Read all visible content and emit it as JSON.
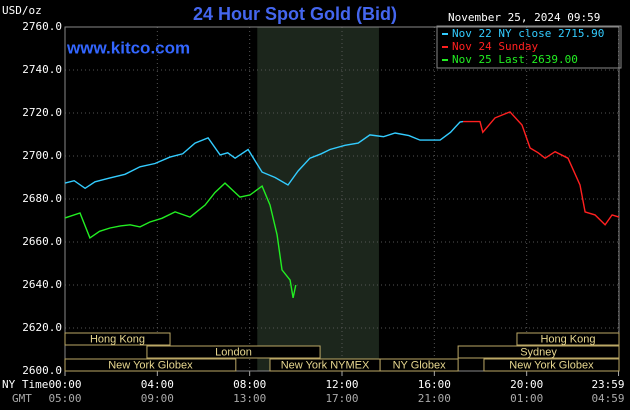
{
  "chart_data": {
    "type": "line",
    "title": "24 Hour Spot Gold (Bid)",
    "unit_label": "USD/oz",
    "site": "www.kitco.com",
    "timestamp": "November 25, 2024 09:59",
    "ylim": [
      2600,
      2760
    ],
    "yticks": [
      {
        "value": 2600,
        "label": "2600.0"
      },
      {
        "value": 2620,
        "label": "2620.0"
      },
      {
        "value": 2640,
        "label": "2640.0"
      },
      {
        "value": 2660,
        "label": "2660.0"
      },
      {
        "value": 2680,
        "label": "2680.0"
      },
      {
        "value": 2700,
        "label": "2700.0"
      },
      {
        "value": 2720,
        "label": "2720.0"
      },
      {
        "value": 2740,
        "label": "2740.0"
      },
      {
        "value": 2760,
        "label": "2760.0"
      }
    ],
    "xlim": [
      0,
      24
    ],
    "xticks": [
      {
        "value": 0,
        "label": "00:00"
      },
      {
        "value": 4,
        "label": "04:00"
      },
      {
        "value": 8,
        "label": "08:00"
      },
      {
        "value": 12,
        "label": "12:00"
      },
      {
        "value": 16,
        "label": "16:00"
      },
      {
        "value": 20,
        "label": "20:00"
      },
      {
        "value": 23.98,
        "label": "23:59"
      }
    ],
    "x_row_label": "NY Time",
    "gmt_row_label": "GMT",
    "gmt_labels": [
      "05:00",
      "09:00",
      "13:00",
      "17:00",
      "21:00",
      "01:00",
      "04:59"
    ],
    "grid": true,
    "shade": [
      8.33,
      13.6
    ],
    "series": [
      {
        "name": "Nov 22 NY close 2715.90",
        "color": "#33ccff",
        "x": [
          0,
          0.4,
          0.87,
          1.3,
          1.95,
          2.6,
          3.25,
          3.9,
          4.55,
          5.1,
          5.63,
          6.2,
          6.72,
          7.05,
          7.37,
          7.93,
          8.54,
          9.1,
          9.66,
          10.1,
          10.61,
          11.1,
          11.48,
          12.13,
          12.7,
          13.21,
          13.8,
          14.3,
          14.9,
          15.38,
          16.25,
          16.7,
          17.11,
          17.24
        ],
        "values": [
          2687.4,
          2688.5,
          2685,
          2688,
          2689.8,
          2691.5,
          2695,
          2696.5,
          2699.5,
          2701,
          2706,
          2708.4,
          2700.5,
          2701.5,
          2699,
          2703,
          2692.5,
          2690,
          2686.5,
          2693,
          2699,
          2701,
          2703,
          2705,
          2706,
          2709.8,
          2709,
          2710.7,
          2709.5,
          2707.4,
          2707.4,
          2711,
          2715.8,
          2716
        ]
      },
      {
        "name": "Nov 24 Sunday",
        "color": "#ff2020",
        "x": [
          17.24,
          17.98,
          18.1,
          18.63,
          19.28,
          19.8,
          20.15,
          20.5,
          20.8,
          21.23,
          21.79,
          22.31,
          22.53,
          22.96,
          23.4,
          23.7,
          24
        ],
        "values": [
          2716,
          2716,
          2711,
          2717.7,
          2720.5,
          2714.4,
          2703.7,
          2701.5,
          2699,
          2702,
          2699,
          2686.5,
          2674,
          2672.6,
          2668,
          2672.6,
          2671.6
        ]
      },
      {
        "name": "Nov 25 Last 2639.00",
        "color": "#22ee22",
        "x": [
          0,
          0.65,
          1.08,
          1.5,
          1.95,
          2.4,
          2.82,
          3.25,
          3.68,
          4.2,
          4.77,
          5.42,
          6.07,
          6.5,
          6.93,
          7.58,
          8.02,
          8.54,
          8.88,
          9.19,
          9.4,
          9.75,
          9.88,
          10.0
        ],
        "values": [
          2671.2,
          2673.5,
          2661.9,
          2665,
          2666.5,
          2667.5,
          2668,
          2667,
          2669.3,
          2671,
          2674,
          2671.6,
          2677.2,
          2683,
          2687.4,
          2680.9,
          2681.9,
          2686,
          2677.2,
          2663.3,
          2647,
          2642.3,
          2634,
          2640
        ]
      }
    ],
    "sessions": [
      {
        "name": "Hong Kong",
        "row": 0,
        "start": 0,
        "end": 4.55
      },
      {
        "name": "London",
        "row": 1,
        "start": 3.55,
        "end": 11.05
      },
      {
        "name": "New York Globex",
        "row": 2,
        "start": 0,
        "end": 7.4
      },
      {
        "name": "New York NYMEX",
        "row": 2,
        "start": 8.88,
        "end": 13.65
      },
      {
        "name": "NY Globex",
        "row": 2,
        "start": 13.65,
        "end": 17.03
      },
      {
        "name": "Sydney",
        "row": 1,
        "start": 17.03,
        "end": 24
      },
      {
        "name": "Hong Kong",
        "row": 0,
        "start": 19.58,
        "end": 24
      },
      {
        "name": "New York Globex",
        "row": 2,
        "start": 18.15,
        "end": 24
      }
    ]
  }
}
